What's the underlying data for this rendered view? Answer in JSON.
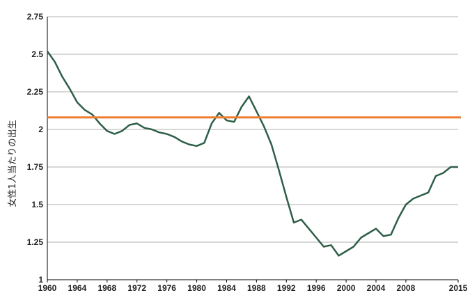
{
  "chart_data": {
    "type": "line",
    "title": "",
    "xlabel": "",
    "ylabel": "女性1人当たりの出生",
    "xlim": [
      1960,
      2015
    ],
    "ylim": [
      1,
      2.75
    ],
    "x_ticks": [
      1960,
      1964,
      1968,
      1972,
      1976,
      1980,
      1984,
      1988,
      1992,
      1996,
      2000,
      2004,
      2008,
      2015
    ],
    "x_tick_labels": [
      "1960",
      "1964",
      "1968",
      "1972",
      "1976",
      "1980",
      "1984",
      "1988",
      "1992",
      "1996",
      "2000",
      "2004",
      "2008",
      "2015"
    ],
    "y_ticks": [
      1,
      1.25,
      1.5,
      1.75,
      2,
      2.25,
      2.5,
      2.75
    ],
    "y_tick_labels": [
      "1",
      "1.25",
      "1.5",
      "1.75",
      "2",
      "2.25",
      "2.5",
      "2.75"
    ],
    "grid": "horizontal",
    "series": [
      {
        "color": "#2e5e47",
        "x": [
          1960,
          1961,
          1962,
          1963,
          1964,
          1965,
          1966,
          1967,
          1968,
          1969,
          1970,
          1971,
          1972,
          1973,
          1974,
          1975,
          1976,
          1977,
          1978,
          1979,
          1980,
          1981,
          1982,
          1983,
          1984,
          1985,
          1986,
          1987,
          1988,
          1989,
          1990,
          1991,
          1992,
          1993,
          1994,
          1995,
          1996,
          1997,
          1998,
          1999,
          2000,
          2001,
          2002,
          2003,
          2004,
          2005,
          2006,
          2007,
          2008,
          2009,
          2010,
          2011,
          2012,
          2013,
          2014,
          2015
        ],
        "values": [
          2.52,
          2.45,
          2.35,
          2.27,
          2.18,
          2.13,
          2.1,
          2.04,
          1.99,
          1.97,
          1.99,
          2.03,
          2.04,
          2.01,
          2.0,
          1.98,
          1.97,
          1.95,
          1.92,
          1.9,
          1.89,
          1.91,
          2.04,
          2.11,
          2.06,
          2.05,
          2.15,
          2.22,
          2.12,
          2.02,
          1.9,
          1.73,
          1.55,
          1.38,
          1.4,
          1.34,
          1.28,
          1.22,
          1.23,
          1.16,
          1.19,
          1.22,
          1.28,
          1.31,
          1.34,
          1.29,
          1.3,
          1.41,
          1.5,
          1.54,
          1.56,
          1.58,
          1.69,
          1.71,
          1.75,
          1.75
        ]
      }
    ],
    "reference_line": {
      "value": 2.08,
      "color": "#ed7d31"
    },
    "axis_color": "#000000",
    "grid_color": "#b0b0b0"
  }
}
